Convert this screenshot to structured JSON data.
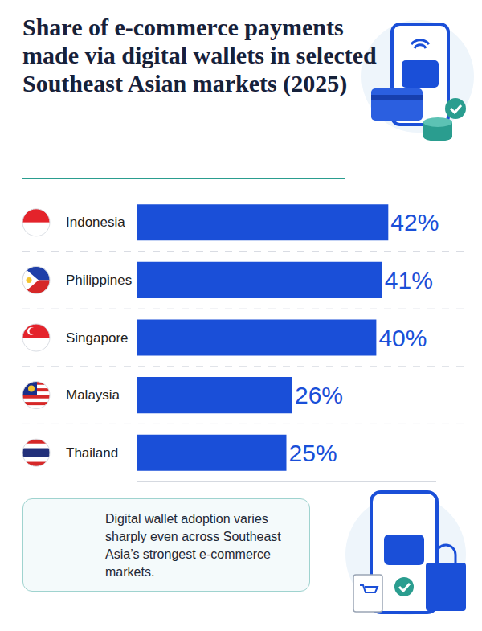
{
  "chart_data": {
    "type": "bar",
    "title": "Share of e-commerce payments made via digital wallets in selected Southeast Asian markets (2025)",
    "categories": [
      "Indonesia",
      "Philippines",
      "Singapore",
      "Malaysia",
      "Thailand"
    ],
    "values": [
      42,
      41,
      40,
      26,
      25
    ],
    "value_labels": [
      "42%",
      "41%",
      "40%",
      "26%",
      "25%"
    ],
    "color": "#1a4fd8",
    "orientation": "horizontal",
    "data_labels": true,
    "tick_labels": "y",
    "xlim": [
      0,
      50
    ],
    "annotation": "Digital wallet adoption varies sharply even across Southeast Asia’s strongest e-commerce markets."
  }
}
